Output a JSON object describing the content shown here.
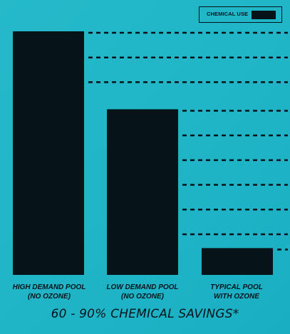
{
  "chart_data": {
    "type": "bar",
    "categories": [
      [
        "HIGH DEMAND POOL",
        "(NO OZONE)"
      ],
      [
        "LOW DEMAND POOL",
        "(NO OZONE)"
      ],
      [
        "TYPICAL POOL",
        "WITH OZONE"
      ]
    ],
    "series": [
      {
        "name": "CHEMICAL USE",
        "values": [
          100,
          68,
          11
        ],
        "color": "#061419"
      }
    ],
    "ylim": [
      0,
      100
    ],
    "grid": false,
    "dashed_leaders": true,
    "legend_position": "top-right"
  },
  "legend": {
    "label": "CHEMICAL USE"
  },
  "caption": "60 - 90% CHEMICAL SAVINGS*",
  "colors": {
    "bar": "#061419",
    "background": "#20b6c8",
    "text": "#061419"
  }
}
